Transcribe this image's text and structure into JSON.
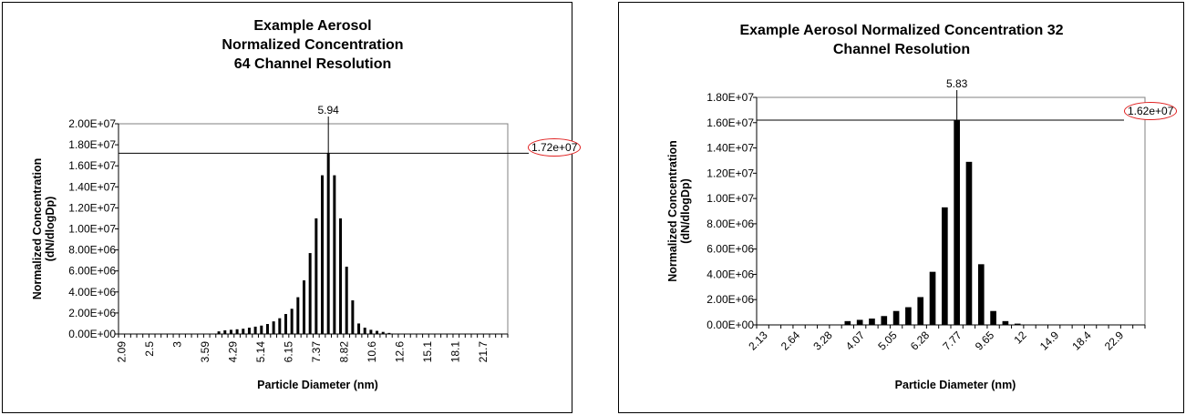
{
  "chart_data": [
    {
      "type": "bar",
      "title": [
        "Example Aerosol",
        "Normalized Concentration",
        "64 Channel Resolution"
      ],
      "xlabel": "Particle Diameter (nm)",
      "ylabel": [
        "Normalized Concentration",
        "(dN/dlogDp)"
      ],
      "ylim": [
        0,
        20000000
      ],
      "ytick_labels": [
        "0.00E+00",
        "2.00E+06",
        "4.00E+06",
        "6.00E+06",
        "8.00E+06",
        "1.00E+07",
        "1.20E+07",
        "1.40E+07",
        "1.60E+07",
        "1.80E+07",
        "2.00E+07"
      ],
      "xtick_labels": [
        "2.09",
        "2.5",
        "3",
        "3.59",
        "4.29",
        "5.14",
        "6.15",
        "7.37",
        "8.82",
        "10.6",
        "12.6",
        "15.1",
        "18.1",
        "21.7"
      ],
      "xtick_rotation": 90,
      "n_channels": 64,
      "values": [
        0,
        0,
        0,
        0,
        0,
        0,
        0,
        0,
        0,
        0,
        0,
        0,
        0,
        0,
        0,
        0,
        250000,
        350000,
        400000,
        450000,
        500000,
        600000,
        700000,
        800000,
        950000,
        1200000,
        1500000,
        1900000,
        2400000,
        3500000,
        5100000,
        7700000,
        11000000,
        15100000,
        17200000,
        15100000,
        11000000,
        6400000,
        3200000,
        1000000,
        600000,
        400000,
        300000,
        200000,
        100000,
        0,
        0,
        0,
        0,
        0,
        0,
        0,
        0,
        0,
        0,
        0,
        0,
        0,
        0,
        0,
        0,
        0,
        0,
        0
      ],
      "peak": {
        "x_label": "5.94",
        "y_label": "1.72e+07",
        "y": 17200000,
        "bar_index": 34
      }
    },
    {
      "type": "bar",
      "title": [
        "Example Aerosol Normalized Concentration 32",
        "Channel Resolution"
      ],
      "xlabel": "Particle Diameter (nm)",
      "ylabel": [
        "Normalized Concentration",
        "(dN/dlogDp)"
      ],
      "ylim": [
        0,
        18000000
      ],
      "ytick_labels": [
        "0.00E+00",
        "2.00E+06",
        "4.00E+06",
        "6.00E+06",
        "8.00E+06",
        "1.00E+07",
        "1.20E+07",
        "1.40E+07",
        "1.60E+07",
        "1.80E+07"
      ],
      "xtick_labels": [
        "2.13",
        "2.64",
        "3.28",
        "4.07",
        "5.05",
        "6.28",
        "7.77",
        "9.65",
        "12",
        "14.9",
        "18.4",
        "22.9"
      ],
      "xtick_rotation": 45,
      "n_channels": 32,
      "values": [
        0,
        0,
        0,
        0,
        0,
        0,
        0,
        300000,
        400000,
        500000,
        700000,
        1100000,
        1400000,
        2200000,
        4200000,
        9300000,
        16200000,
        12900000,
        4800000,
        1100000,
        300000,
        100000,
        0,
        0,
        0,
        0,
        0,
        0,
        0,
        0,
        0,
        0
      ],
      "peak": {
        "x_label": "5.83",
        "y_label": "1.62e+07",
        "y": 16200000,
        "bar_index": 16
      }
    }
  ]
}
